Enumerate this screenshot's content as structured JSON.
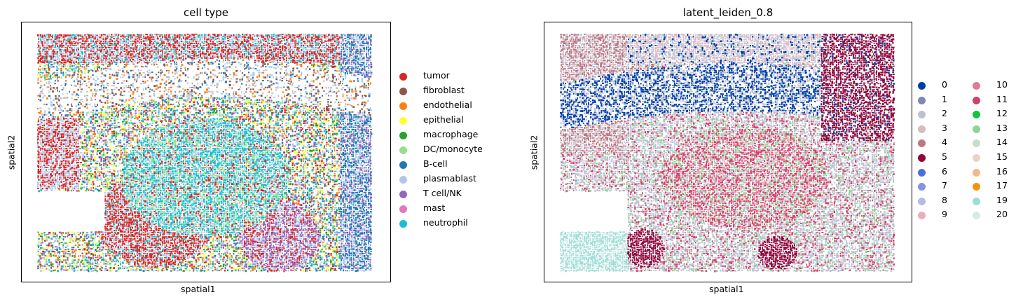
{
  "chart_data": [
    {
      "type": "scatter",
      "title": "cell type",
      "xlabel": "spatial1",
      "ylabel": "spatial2",
      "legend_position": "right",
      "categories": [
        {
          "label": "tumor",
          "color": "#d62728"
        },
        {
          "label": "fibroblast",
          "color": "#8c564b"
        },
        {
          "label": "endothelial",
          "color": "#ff7f0e"
        },
        {
          "label": "epithelial",
          "color": "#ffff33"
        },
        {
          "label": "macrophage",
          "color": "#2ca02c"
        },
        {
          "label": "DC/monocyte",
          "color": "#98df8a"
        },
        {
          "label": "B-cell",
          "color": "#1f77b4"
        },
        {
          "label": "plasmablast",
          "color": "#aec7e8"
        },
        {
          "label": "T cell/NK",
          "color": "#9467bd"
        },
        {
          "label": "mast",
          "color": "#e377c2"
        },
        {
          "label": "neutrophil",
          "color": "#17becf"
        }
      ]
    },
    {
      "type": "scatter",
      "title": "latent_leiden_0.8",
      "xlabel": "spatial1",
      "ylabel": "spatial2",
      "legend_position": "right",
      "categories": [
        {
          "label": "0",
          "color": "#023fa5"
        },
        {
          "label": "1",
          "color": "#7d87b9"
        },
        {
          "label": "2",
          "color": "#bec1d4"
        },
        {
          "label": "3",
          "color": "#d6bcc0"
        },
        {
          "label": "4",
          "color": "#bb7784"
        },
        {
          "label": "5",
          "color": "#8e063b"
        },
        {
          "label": "6",
          "color": "#4a6fe3"
        },
        {
          "label": "7",
          "color": "#8595e1"
        },
        {
          "label": "8",
          "color": "#b5bbe3"
        },
        {
          "label": "9",
          "color": "#e6afb9"
        },
        {
          "label": "10",
          "color": "#e07b91"
        },
        {
          "label": "11",
          "color": "#d33f6a"
        },
        {
          "label": "12",
          "color": "#11c638"
        },
        {
          "label": "13",
          "color": "#8dd593"
        },
        {
          "label": "14",
          "color": "#c6dec7"
        },
        {
          "label": "15",
          "color": "#ead3c6"
        },
        {
          "label": "16",
          "color": "#f0b98d"
        },
        {
          "label": "17",
          "color": "#ef9708"
        },
        {
          "label": "19",
          "color": "#9cded6"
        },
        {
          "label": "20",
          "color": "#d5eae7"
        }
      ]
    }
  ]
}
